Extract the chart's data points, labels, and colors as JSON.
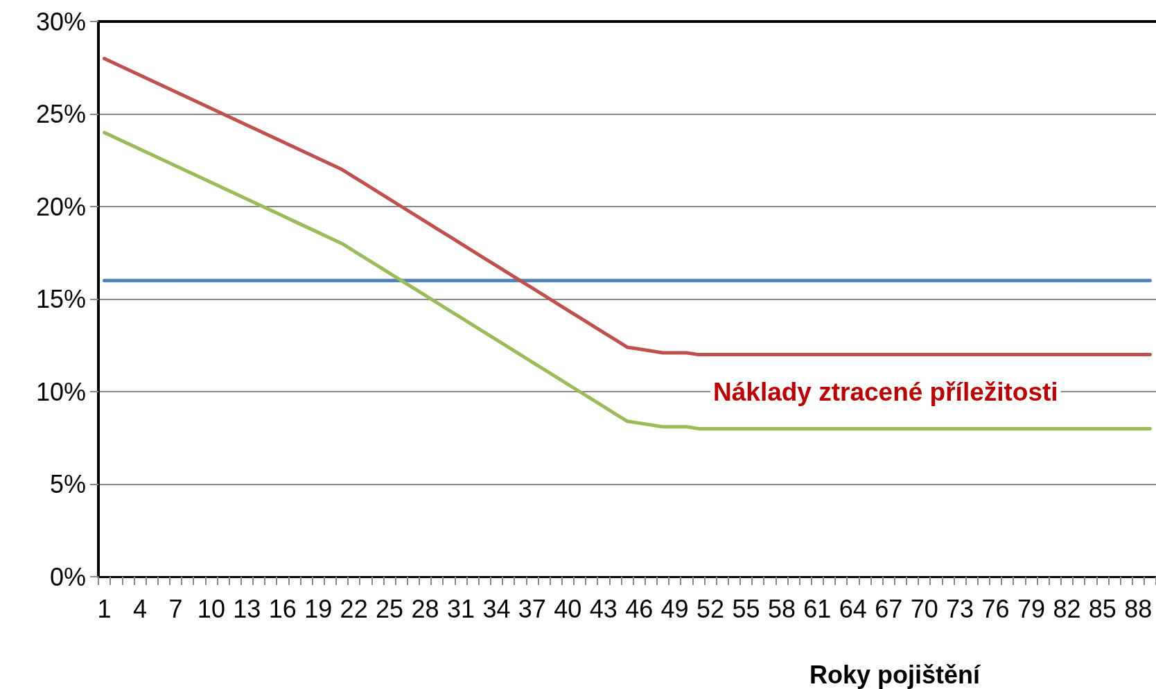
{
  "chart_data": {
    "type": "line",
    "xlabel": "Roky pojištění",
    "categories": [
      "1",
      null,
      null,
      "4",
      null,
      null,
      "7",
      null,
      null,
      "10",
      null,
      null,
      "13",
      null,
      null,
      "16",
      null,
      null,
      "19",
      null,
      null,
      "22",
      null,
      null,
      "25",
      null,
      null,
      "28",
      null,
      null,
      "31",
      null,
      null,
      "34",
      null,
      null,
      "37",
      null,
      null,
      "40",
      null,
      null,
      "43",
      null,
      null,
      "46",
      null,
      null,
      "49",
      null,
      null,
      "52",
      null,
      null,
      "55",
      null,
      null,
      "58",
      null,
      null,
      "61",
      null,
      null,
      "64",
      null,
      null,
      "67",
      null,
      null,
      "70",
      null,
      null,
      "73",
      null,
      null,
      "76",
      null,
      null,
      "79",
      null,
      null,
      "82",
      null,
      null,
      "85",
      null,
      null,
      "88",
      null
    ],
    "series": [
      {
        "color": "#4f81bd",
        "values": [
          16,
          16,
          16,
          16,
          16,
          16,
          16,
          16,
          16,
          16,
          16,
          16,
          16,
          16,
          16,
          16,
          16,
          16,
          16,
          16,
          16,
          16,
          16,
          16,
          16,
          16,
          16,
          16,
          16,
          16,
          16,
          16,
          16,
          16,
          16,
          16,
          16,
          16,
          16,
          16,
          16,
          16,
          16,
          16,
          16,
          16,
          16,
          16,
          16,
          16,
          16,
          16,
          16,
          16,
          16,
          16,
          16,
          16,
          16,
          16,
          16,
          16,
          16,
          16,
          16,
          16,
          16,
          16,
          16,
          16,
          16,
          16,
          16,
          16,
          16,
          16,
          16,
          16,
          16,
          16,
          16,
          16,
          16,
          16,
          16,
          16,
          16,
          16,
          16
        ]
      },
      {
        "color": "#c0504d",
        "values": [
          28,
          27.7,
          27.4,
          27.1,
          26.8,
          26.5,
          26.2,
          25.9,
          25.6,
          25.3,
          25,
          24.7,
          24.4,
          24.1,
          23.8,
          23.5,
          23.2,
          22.9,
          22.6,
          22.3,
          22,
          21.6,
          21.2,
          20.8,
          20.4,
          20,
          19.6,
          19.2,
          18.8,
          18.4,
          18,
          17.6,
          17.2,
          16.8,
          16.4,
          16,
          15.6,
          15.2,
          14.8,
          14.4,
          14,
          13.6,
          13.2,
          12.8,
          12.4,
          12.3,
          12.2,
          12.1,
          12.1,
          12.1,
          12,
          12,
          12,
          12,
          12,
          12,
          12,
          12,
          12,
          12,
          12,
          12,
          12,
          12,
          12,
          12,
          12,
          12,
          12,
          12,
          12,
          12,
          12,
          12,
          12,
          12,
          12,
          12,
          12,
          12,
          12,
          12,
          12,
          12,
          12,
          12,
          12,
          12,
          12
        ]
      },
      {
        "color": "#9bbb59",
        "values": [
          24,
          23.7,
          23.4,
          23.1,
          22.8,
          22.5,
          22.2,
          21.9,
          21.6,
          21.3,
          21,
          20.7,
          20.4,
          20.1,
          19.8,
          19.5,
          19.2,
          18.9,
          18.6,
          18.3,
          18,
          17.6,
          17.2,
          16.8,
          16.4,
          16,
          15.6,
          15.2,
          14.8,
          14.4,
          14,
          13.6,
          13.2,
          12.8,
          12.4,
          12,
          11.6,
          11.2,
          10.8,
          10.4,
          10,
          9.6,
          9.2,
          8.8,
          8.4,
          8.3,
          8.2,
          8.1,
          8.1,
          8.1,
          8,
          8,
          8,
          8,
          8,
          8,
          8,
          8,
          8,
          8,
          8,
          8,
          8,
          8,
          8,
          8,
          8,
          8,
          8,
          8,
          8,
          8,
          8,
          8,
          8,
          8,
          8,
          8,
          8,
          8,
          8,
          8,
          8,
          8,
          8,
          8,
          8,
          8,
          8
        ]
      }
    ],
    "ylim": [
      0,
      30
    ],
    "yticks": [
      {
        "value": 0,
        "label": "0%"
      },
      {
        "value": 5,
        "label": "5%"
      },
      {
        "value": 10,
        "label": "10%"
      },
      {
        "value": 15,
        "label": "15%"
      },
      {
        "value": 20,
        "label": "20%"
      },
      {
        "value": 25,
        "label": "25%"
      },
      {
        "value": 30,
        "label": "30%"
      }
    ],
    "grid": "y",
    "marker": "none",
    "line_style": "solid",
    "annotations": [
      "Náklady ztracené příležitosti"
    ]
  }
}
